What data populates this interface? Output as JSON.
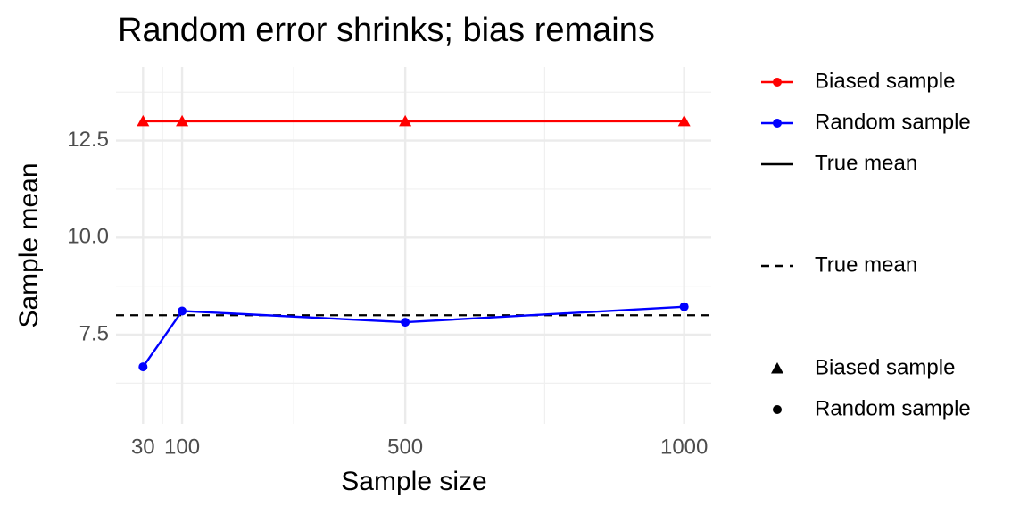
{
  "chart_data": {
    "type": "line",
    "title": "Random error shrinks; bias remains",
    "x_label": "Sample size",
    "y_label": "Sample mean",
    "x": [
      30,
      100,
      500,
      1000
    ],
    "series": [
      {
        "name": "Biased sample",
        "color": "#ff0000",
        "shape": "triangle",
        "values": [
          13,
          13,
          13,
          13
        ]
      },
      {
        "name": "Random sample",
        "color": "#0000ff",
        "shape": "circle",
        "values": [
          6.67,
          8.11,
          7.82,
          8.22
        ]
      }
    ],
    "reference_lines": [
      {
        "name": "True mean",
        "value": 8,
        "color": "#000000",
        "dashed": true
      }
    ],
    "legend": {
      "color": [
        "Biased sample",
        "Random sample",
        "True mean"
      ],
      "linetype": [
        "True mean"
      ],
      "shape": [
        "Biased sample",
        "Random sample"
      ]
    },
    "xlim": [
      -18.5,
      1048.5
    ],
    "ylim": [
      5.2,
      14.4
    ],
    "xticks": [
      30,
      100,
      500,
      1000
    ],
    "xminor": [
      65,
      300,
      750
    ],
    "yticks": [
      7.5,
      10.0,
      12.5
    ],
    "yticks_labels": [
      "7.5",
      "10.0",
      "12.5"
    ],
    "yminor": [
      6.25,
      8.75,
      11.25,
      13.75
    ],
    "grid": true
  }
}
